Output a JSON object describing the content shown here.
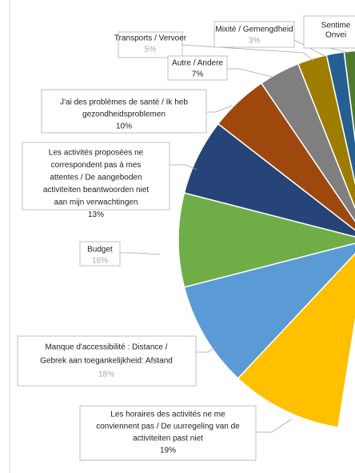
{
  "chart_data": {
    "type": "pie",
    "categories": [
      [
        "Sentime",
        "Onvei"
      ],
      [
        "Mixité / Gemengdheid"
      ],
      [
        "Transports / Vervoer"
      ],
      [
        "Autre / Andere"
      ],
      [
        "J'ai des problèmes de santé / Ik heb",
        "gezondheidsproblemen"
      ],
      [
        "Les activités proposées ne",
        "correspondent pas à mes",
        "attentes / De aangeboden",
        "activiteiten beantwoorden niet",
        "aan mijn verwachtingen"
      ],
      [
        "Budget"
      ],
      [
        "Manque d'accessibilité : Distance /",
        "Gebrek aan toegankelijkheid: Afstand"
      ],
      [
        "Les horaires des activités ne me",
        "conviennent pas / De uurregeling van de",
        "activiteiten past niet"
      ]
    ],
    "values": [
      4,
      3,
      5,
      7,
      10,
      13,
      16,
      18,
      19
    ],
    "value_labels": [
      null,
      "3%",
      "5%",
      "7%",
      "10%",
      "13%",
      "16%",
      "18%",
      "19%"
    ],
    "colors": [
      "#4e7a2e",
      "#255e91",
      "#9e7c00",
      "#7f7f7f",
      "#9e480e",
      "#264478",
      "#70ad47",
      "#5b9bd5",
      "#ffc000"
    ],
    "value_label_colors": [
      null,
      "#a5a5a5",
      "#a5a5a5",
      "#222222",
      "#222222",
      "#222222",
      "#a5a5a5",
      "#a5a5a5",
      "#222222"
    ]
  }
}
